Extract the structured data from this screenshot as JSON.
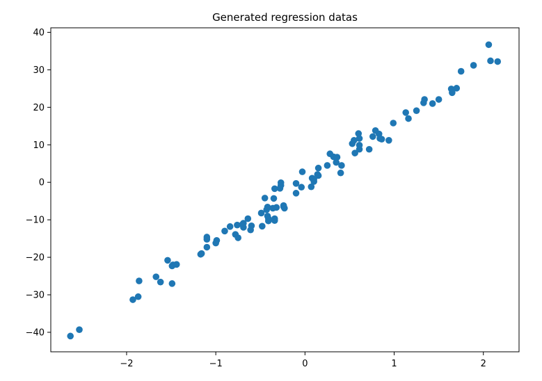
{
  "chart_data": {
    "type": "scatter",
    "title": "Generated regression datas",
    "xlabel": "",
    "ylabel": "",
    "xlim": [
      -2.85,
      2.4
    ],
    "ylim": [
      -45.2,
      41.2
    ],
    "xticks": [
      -2,
      -1,
      0,
      1,
      2
    ],
    "xtick_labels": [
      "−2",
      "−1",
      "0",
      "1",
      "2"
    ],
    "yticks": [
      -40,
      -30,
      -20,
      -10,
      0,
      10,
      20,
      30,
      40
    ],
    "ytick_labels": [
      "−40",
      "−30",
      "−20",
      "−10",
      "0",
      "10",
      "20",
      "30",
      "40"
    ],
    "grid": false,
    "marker_color": "#1f77b4",
    "series": [
      {
        "points": [
          [
            -2.63,
            -41.0
          ],
          [
            -2.53,
            -39.3
          ],
          [
            -1.93,
            -31.3
          ],
          [
            -1.87,
            -30.5
          ],
          [
            -1.86,
            -26.3
          ],
          [
            -1.67,
            -25.2
          ],
          [
            -1.62,
            -26.6
          ],
          [
            -1.54,
            -20.8
          ],
          [
            -1.49,
            -22.3
          ],
          [
            -1.48,
            -22.0
          ],
          [
            -1.49,
            -27.0
          ],
          [
            -1.44,
            -21.9
          ],
          [
            -1.17,
            -19.2
          ],
          [
            -1.16,
            -19.0
          ],
          [
            -1.1,
            -14.6
          ],
          [
            -1.1,
            -15.2
          ],
          [
            -1.1,
            -17.3
          ],
          [
            -0.99,
            -15.5
          ],
          [
            -1.0,
            -16.2
          ],
          [
            -0.9,
            -13.0
          ],
          [
            -0.84,
            -11.8
          ],
          [
            -0.78,
            -13.9
          ],
          [
            -0.76,
            -11.4
          ],
          [
            -0.75,
            -14.8
          ],
          [
            -0.7,
            -11.2
          ],
          [
            -0.69,
            -12.0
          ],
          [
            -0.69,
            -10.9
          ],
          [
            -0.64,
            -9.7
          ],
          [
            -0.61,
            -12.7
          ],
          [
            -0.6,
            -11.6
          ],
          [
            -0.48,
            -11.7
          ],
          [
            -0.49,
            -8.2
          ],
          [
            -0.45,
            -4.2
          ],
          [
            -0.43,
            -7.3
          ],
          [
            -0.42,
            -6.6
          ],
          [
            -0.41,
            -9.7
          ],
          [
            -0.42,
            -9.0
          ],
          [
            -0.41,
            -10.3
          ],
          [
            -0.36,
            -6.9
          ],
          [
            -0.35,
            -4.3
          ],
          [
            -0.34,
            -1.7
          ],
          [
            -0.34,
            -9.7
          ],
          [
            -0.34,
            -10.2
          ],
          [
            -0.32,
            -6.7
          ],
          [
            -0.28,
            -1.6
          ],
          [
            -0.27,
            -0.8
          ],
          [
            -0.27,
            -0.1
          ],
          [
            -0.24,
            -6.5
          ],
          [
            -0.24,
            -6.2
          ],
          [
            -0.23,
            -6.9
          ],
          [
            -0.1,
            -0.3
          ],
          [
            -0.1,
            -2.9
          ],
          [
            -0.04,
            -1.3
          ],
          [
            -0.03,
            2.8
          ],
          [
            0.07,
            -1.2
          ],
          [
            0.08,
            1.1
          ],
          [
            0.1,
            0.8
          ],
          [
            0.1,
            0.2
          ],
          [
            0.14,
            2.1
          ],
          [
            0.15,
            1.8
          ],
          [
            0.15,
            3.8
          ],
          [
            0.25,
            4.5
          ],
          [
            0.28,
            7.6
          ],
          [
            0.32,
            6.8
          ],
          [
            0.35,
            5.3
          ],
          [
            0.36,
            6.7
          ],
          [
            0.4,
            2.5
          ],
          [
            0.41,
            4.5
          ],
          [
            0.53,
            10.3
          ],
          [
            0.55,
            11.2
          ],
          [
            0.56,
            7.8
          ],
          [
            0.6,
            13.0
          ],
          [
            0.61,
            8.8
          ],
          [
            0.61,
            9.9
          ],
          [
            0.61,
            11.7
          ],
          [
            0.72,
            8.8
          ],
          [
            0.76,
            12.2
          ],
          [
            0.79,
            13.8
          ],
          [
            0.83,
            12.9
          ],
          [
            0.84,
            11.7
          ],
          [
            0.86,
            11.5
          ],
          [
            0.94,
            11.2
          ],
          [
            0.99,
            15.8
          ],
          [
            1.13,
            18.6
          ],
          [
            1.16,
            17.0
          ],
          [
            1.25,
            19.1
          ],
          [
            1.33,
            21.2
          ],
          [
            1.34,
            22.1
          ],
          [
            1.43,
            21.0
          ],
          [
            1.5,
            22.1
          ],
          [
            1.64,
            24.9
          ],
          [
            1.65,
            23.9
          ],
          [
            1.7,
            25.1
          ],
          [
            1.75,
            29.6
          ],
          [
            1.89,
            31.2
          ],
          [
            2.06,
            36.7
          ],
          [
            2.08,
            32.4
          ],
          [
            2.16,
            32.2
          ]
        ]
      }
    ]
  }
}
